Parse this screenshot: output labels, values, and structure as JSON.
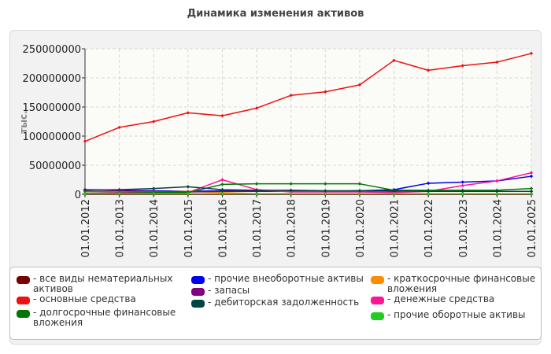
{
  "chart_data": {
    "type": "line",
    "title": "Динамика изменения активов",
    "ylabel": "тыс.",
    "xlabel": "",
    "categories": [
      "01.01.2012",
      "01.01.2013",
      "01.01.2014",
      "01.01.2015",
      "01.01.2016",
      "01.01.2017",
      "01.01.2018",
      "01.01.2019",
      "01.01.2020",
      "01.01.2021",
      "01.01.2022",
      "01.01.2023",
      "01.01.2024",
      "01.01.2025"
    ],
    "ylim": [
      0,
      250000000
    ],
    "yticks": [
      0,
      50000000,
      100000000,
      150000000,
      200000000,
      250000000
    ],
    "ytick_labels": [
      "0",
      "50000000",
      "100000000",
      "150000000",
      "200000000",
      "250000000"
    ],
    "grid": true,
    "legend_position": "bottom",
    "series": [
      {
        "name": "- все виды нематериальных активов",
        "color": "#7a0000",
        "values": [
          0,
          0,
          0,
          0,
          0,
          0,
          0,
          0,
          0,
          0,
          0,
          0,
          0,
          0
        ]
      },
      {
        "name": "- прочие внеоборотные активы",
        "color": "#0000ee",
        "values": [
          8000000,
          7000000,
          6000000,
          5000000,
          6000000,
          6000000,
          5000000,
          5000000,
          6000000,
          8000000,
          19000000,
          21000000,
          23000000,
          31000000
        ]
      },
      {
        "name": "- краткосрочные финансовые вложения",
        "color": "#ff8c00",
        "values": [
          1000000,
          2000000,
          4000000,
          5000000,
          3000000,
          1000000,
          1000000,
          1000000,
          1000000,
          1000000,
          1000000,
          1000000,
          1000000,
          1000000
        ]
      },
      {
        "name": "- основные средства",
        "color": "#ee1111",
        "values": [
          91000000,
          115000000,
          125000000,
          140000000,
          135000000,
          148000000,
          170000000,
          176000000,
          188000000,
          230000000,
          213000000,
          221000000,
          227000000,
          242000000
        ]
      },
      {
        "name": "- запасы",
        "color": "#800080",
        "values": [
          8000000,
          6000000,
          5000000,
          4000000,
          5000000,
          5000000,
          5000000,
          5000000,
          6000000,
          5000000,
          6000000,
          5000000,
          5000000,
          5000000
        ]
      },
      {
        "name": "- денежные средства",
        "color": "#ff1493",
        "values": [
          5000000,
          4000000,
          4000000,
          3000000,
          25000000,
          8000000,
          4000000,
          4000000,
          4000000,
          3000000,
          5000000,
          15000000,
          23000000,
          37000000
        ]
      },
      {
        "name": "- долгосрочные финансовые вложения",
        "color": "#007700",
        "values": [
          2000000,
          2000000,
          3000000,
          3000000,
          17000000,
          18000000,
          18000000,
          18000000,
          18000000,
          7000000,
          7000000,
          7000000,
          7000000,
          10000000
        ]
      },
      {
        "name": "- дебиторская задолженность",
        "color": "#004444",
        "values": [
          7000000,
          8000000,
          10000000,
          13000000,
          8000000,
          7000000,
          7000000,
          6000000,
          6000000,
          6000000,
          5000000,
          5000000,
          5000000,
          5000000
        ]
      },
      {
        "name": "- прочие оборотные активы",
        "color": "#22cc22",
        "values": [
          1000000,
          1000000,
          1000000,
          1000000,
          1000000,
          1000000,
          1000000,
          1000000,
          1000000,
          1000000,
          1000000,
          1000000,
          1000000,
          1000000
        ]
      }
    ]
  }
}
